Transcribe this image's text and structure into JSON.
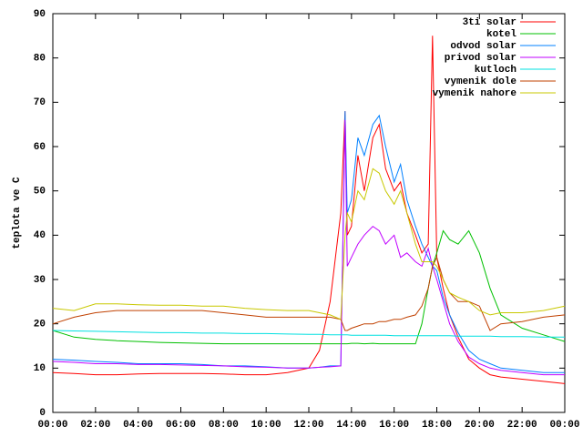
{
  "chart_data": {
    "type": "line",
    "ylabel": "teplota ve C",
    "legend": "top right",
    "xlim": [
      0,
      24
    ],
    "xticks": [
      {
        "value": 0,
        "label": "00:00"
      },
      {
        "value": 2,
        "label": "02:00"
      },
      {
        "value": 4,
        "label": "04:00"
      },
      {
        "value": 6,
        "label": "06:00"
      },
      {
        "value": 8,
        "label": "08:00"
      },
      {
        "value": 10,
        "label": "10:00"
      },
      {
        "value": 12,
        "label": "12:00"
      },
      {
        "value": 14,
        "label": "14:00"
      },
      {
        "value": 16,
        "label": "16:00"
      },
      {
        "value": 18,
        "label": "18:00"
      },
      {
        "value": 20,
        "label": "20:00"
      },
      {
        "value": 22,
        "label": "22:00"
      },
      {
        "value": 24,
        "label": "00:00"
      }
    ],
    "ylim": [
      0,
      90
    ],
    "yticks": [
      0,
      10,
      20,
      30,
      40,
      50,
      60,
      70,
      80,
      90
    ],
    "x": [
      0,
      1,
      2,
      3,
      4,
      5,
      6,
      7,
      8,
      9,
      10,
      11,
      12,
      12.5,
      13,
      13.5,
      13.7,
      13.8,
      14,
      14.3,
      14.6,
      15,
      15.3,
      15.6,
      16,
      16.3,
      16.6,
      17,
      17.3,
      17.6,
      17.8,
      18,
      18.3,
      18.6,
      19,
      19.5,
      20,
      20.5,
      21,
      22,
      23,
      24
    ],
    "series": [
      {
        "name": "3ti solar",
        "color": "#ff0000",
        "values": [
          9,
          8.8,
          8.5,
          8.5,
          8.7,
          8.8,
          8.8,
          8.8,
          8.7,
          8.5,
          8.5,
          9,
          10,
          14,
          25,
          45,
          68,
          40,
          42,
          58,
          50,
          62,
          65,
          55,
          50,
          52,
          45,
          40,
          36,
          38,
          85,
          35,
          28,
          22,
          17,
          12,
          10,
          8.5,
          8,
          7.5,
          7,
          6.5
        ]
      },
      {
        "name": "kotel",
        "color": "#00c000",
        "values": [
          18.5,
          17,
          16.5,
          16.2,
          16,
          15.8,
          15.7,
          15.6,
          15.5,
          15.5,
          15.5,
          15.5,
          15.5,
          15.5,
          15.5,
          15.5,
          15.5,
          15.5,
          15.6,
          15.6,
          15.5,
          15.6,
          15.5,
          15.5,
          15.5,
          15.5,
          15.5,
          15.5,
          20,
          28,
          33,
          36,
          41,
          39,
          38,
          41,
          36,
          28,
          22,
          19,
          17.5,
          16
        ]
      },
      {
        "name": "odvod solar",
        "color": "#0080ff",
        "values": [
          12,
          11.8,
          11.5,
          11.3,
          11,
          11,
          11,
          10.8,
          10.5,
          10.5,
          10.3,
          10,
          10,
          10.2,
          10.5,
          10.5,
          68,
          45,
          48,
          62,
          58,
          65,
          67,
          60,
          52,
          56,
          48,
          42,
          38,
          35,
          33,
          32,
          26,
          22,
          18,
          14,
          12,
          11,
          10,
          9.5,
          9,
          9
        ]
      },
      {
        "name": "privod solar",
        "color": "#c000ff",
        "values": [
          11.5,
          11.3,
          11,
          11,
          10.8,
          10.8,
          10.7,
          10.6,
          10.5,
          10.3,
          10.2,
          10,
          10,
          10.2,
          10.3,
          10.5,
          66,
          33,
          35,
          38,
          40,
          42,
          41,
          38,
          40,
          35,
          36,
          34,
          33,
          37,
          33,
          30,
          25,
          20,
          16,
          12.5,
          11,
          10,
          9.5,
          9,
          8.5,
          8.5
        ]
      },
      {
        "name": "kutloch",
        "color": "#00e0e0",
        "values": [
          18.5,
          18.4,
          18.3,
          18.2,
          18.1,
          18,
          18,
          17.9,
          17.9,
          17.8,
          17.8,
          17.7,
          17.6,
          17.6,
          17.5,
          17.5,
          17.5,
          17.5,
          17.4,
          17.4,
          17.4,
          17.4,
          17.4,
          17.4,
          17.3,
          17.3,
          17.3,
          17.3,
          17.3,
          17.3,
          17.3,
          17.3,
          17.3,
          17.3,
          17.2,
          17.2,
          17.2,
          17.2,
          17.1,
          17.1,
          17,
          17
        ]
      },
      {
        "name": "vymenik dole",
        "color": "#c04000",
        "values": [
          20,
          21.5,
          22.5,
          23,
          23,
          23,
          23,
          23,
          22.5,
          22,
          21.5,
          21.5,
          21.5,
          21.5,
          21.5,
          21,
          18.5,
          18.5,
          19,
          19.5,
          20,
          20,
          20.5,
          20.5,
          21,
          21,
          21.5,
          22,
          24,
          28,
          33,
          35,
          30,
          27,
          25,
          25,
          24,
          18.5,
          20,
          20.5,
          21.5,
          22
        ]
      },
      {
        "name": "vymenik nahore",
        "color": "#c8c800",
        "values": [
          23.5,
          23,
          24.5,
          24.5,
          24.3,
          24.2,
          24.2,
          24,
          24,
          23.5,
          23.2,
          23,
          23,
          22.5,
          22,
          21,
          40,
          45,
          43,
          50,
          48,
          55,
          54,
          50,
          47,
          50,
          45,
          38,
          34,
          34,
          34,
          33,
          30,
          27,
          26,
          25,
          23,
          22,
          22.5,
          22.5,
          23,
          24
        ]
      }
    ]
  }
}
